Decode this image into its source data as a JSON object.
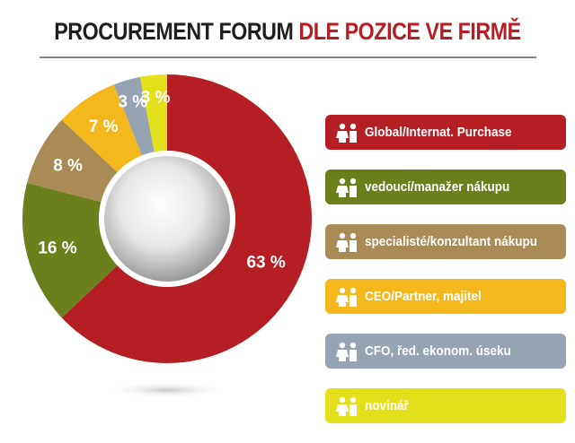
{
  "title": {
    "part1": "PROCUREMENT FORUM",
    "part2": "DLE POZICE VE FIRMĚ",
    "color1": "#1f1f1f",
    "color2": "#b51f24"
  },
  "chart_data": {
    "type": "pie",
    "variant": "donut",
    "categories": [
      "Global/Internat. Purchase",
      "vedoucí/manažer nákupu",
      "specialisté/konzultant nákupu",
      "CEO/Partner, majitel",
      "CFO, řed. ekonom. úseku",
      "novinář"
    ],
    "values": [
      63,
      16,
      8,
      7,
      3,
      3
    ],
    "value_labels": [
      "63 %",
      "16 %",
      "8 %",
      "7 %",
      "3 %",
      "3 %"
    ],
    "colors": [
      "#b51f24",
      "#6b7f1c",
      "#a88b55",
      "#f5b81c",
      "#96a3b3",
      "#e3e01c"
    ],
    "legend_position": "right"
  }
}
